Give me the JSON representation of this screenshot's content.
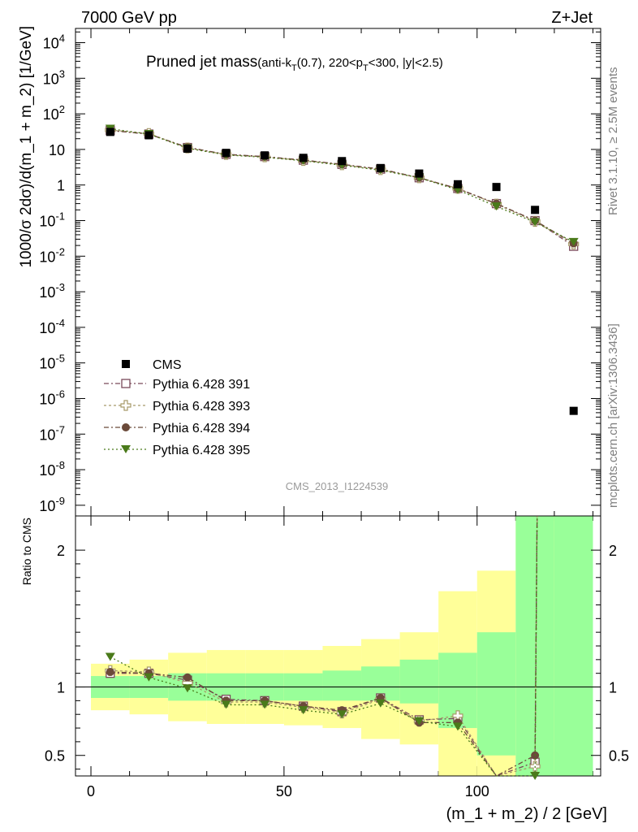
{
  "header": {
    "left": "7000 GeV pp",
    "right": "Z+Jet"
  },
  "side": {
    "rivet": "Rivet 3.1.10, ≥ 2.5M events",
    "mcplots": "mcplots.cern.ch [arXiv:1306.3436]"
  },
  "chart_data": {
    "type": "scatter",
    "title": "Pruned jet mass",
    "title_sub": "(anti-k",
    "title_sub_T": "T",
    "title_sub_rest": "(0.7), 220<p",
    "title_sub_T2": "T",
    "title_sub_end": "<300, |y|<2.5)",
    "watermark": "CMS_2013_I1224539",
    "ylabel": "1000/σ 2dσ)/d(m_1 + m_2) [1/GeV]",
    "ratio_ylabel": "Ratio to CMS",
    "xlabel": "(m_1 + m_2) / 2 [GeV]",
    "xlim": [
      -4,
      132
    ],
    "ylim_log": [
      -9.3,
      4.4
    ],
    "ratio_ylim": [
      0.35,
      2.25
    ],
    "x_ticks": [
      "0",
      "50",
      "100"
    ],
    "y_ticks_exp": [
      "10^4",
      "10^3",
      "10^2",
      "10",
      "1",
      "10^-1",
      "10^-2",
      "10^-3",
      "10^-4",
      "10^-5",
      "10^-6",
      "10^-7",
      "10^-8",
      "10^-9"
    ],
    "ratio_ticks": [
      "0.5",
      "1",
      "2"
    ],
    "x": [
      5,
      15,
      25,
      35,
      45,
      55,
      65,
      75,
      85,
      95,
      105,
      115,
      125
    ],
    "cms": [
      31,
      25,
      10.5,
      8.0,
      6.8,
      5.8,
      4.7,
      3.0,
      2.1,
      1.05,
      0.88,
      0.2,
      4.5e-07
    ],
    "band_inner": [
      [
        0.92,
        1.08
      ],
      [
        0.92,
        1.08
      ],
      [
        0.9,
        1.1
      ],
      [
        0.9,
        1.1
      ],
      [
        0.9,
        1.1
      ],
      [
        0.9,
        1.1
      ],
      [
        0.9,
        1.12
      ],
      [
        0.9,
        1.15
      ],
      [
        0.88,
        1.2
      ],
      [
        0.7,
        1.25
      ],
      [
        0.5,
        1.4
      ],
      [
        0.3,
        2.3
      ],
      [
        0.3,
        2.3
      ]
    ],
    "band_outer": [
      [
        0.83,
        1.17
      ],
      [
        0.8,
        1.2
      ],
      [
        0.75,
        1.25
      ],
      [
        0.73,
        1.27
      ],
      [
        0.73,
        1.27
      ],
      [
        0.72,
        1.27
      ],
      [
        0.7,
        1.3
      ],
      [
        0.62,
        1.35
      ],
      [
        0.58,
        1.4
      ],
      [
        0.3,
        1.7
      ],
      [
        0.3,
        1.85
      ],
      [
        0.3,
        2.3
      ],
      [
        0.3,
        2.3
      ]
    ],
    "series": [
      {
        "name": "Pythia 6.428 391",
        "color": "#7a4a5a",
        "marker": "open-square",
        "dash": "6,3,2,3",
        "values": [
          34,
          27,
          11.3,
          7.3,
          6.3,
          5.0,
          3.8,
          2.8,
          1.6,
          0.8,
          0.3,
          0.1,
          0.019
        ],
        "ratio": [
          1.1,
          1.1,
          1.05,
          0.91,
          0.9,
          0.86,
          0.82,
          0.92,
          0.76,
          0.77,
          0.25,
          0.45,
          null
        ]
      },
      {
        "name": "Pythia 6.428 393",
        "color": "#a89a6a",
        "marker": "open-cross",
        "dash": "3,3",
        "values": [
          35,
          28,
          11.0,
          7.2,
          6.2,
          4.9,
          3.7,
          2.7,
          1.6,
          0.8,
          0.29,
          0.095,
          0.022
        ],
        "ratio": [
          1.12,
          1.11,
          1.03,
          0.89,
          0.89,
          0.85,
          0.81,
          0.91,
          0.75,
          0.79,
          0.25,
          0.42,
          null
        ]
      },
      {
        "name": "Pythia 6.428 394",
        "color": "#6b4a3a",
        "marker": "filled-circle",
        "dash": "6,3,2,3",
        "values": [
          34,
          27,
          11.5,
          7.2,
          6.2,
          5.0,
          3.8,
          2.8,
          1.6,
          0.78,
          0.3,
          0.1,
          0.023
        ],
        "ratio": [
          1.11,
          1.1,
          1.07,
          0.9,
          0.9,
          0.86,
          0.83,
          0.92,
          0.74,
          0.74,
          0.22,
          0.5,
          null
        ]
      },
      {
        "name": "Pythia 6.428 395",
        "color": "#4a7a1a",
        "marker": "filled-triangle",
        "dash": "2,3,2,3",
        "values": [
          38,
          27,
          10.8,
          7.0,
          6.0,
          4.8,
          3.6,
          2.6,
          1.6,
          0.73,
          0.25,
          0.09,
          0.025
        ],
        "ratio": [
          1.22,
          1.07,
          0.99,
          0.87,
          0.87,
          0.83,
          0.8,
          0.88,
          0.75,
          0.71,
          0.2,
          0.35,
          null
        ]
      }
    ],
    "legend_data_label": "CMS"
  }
}
